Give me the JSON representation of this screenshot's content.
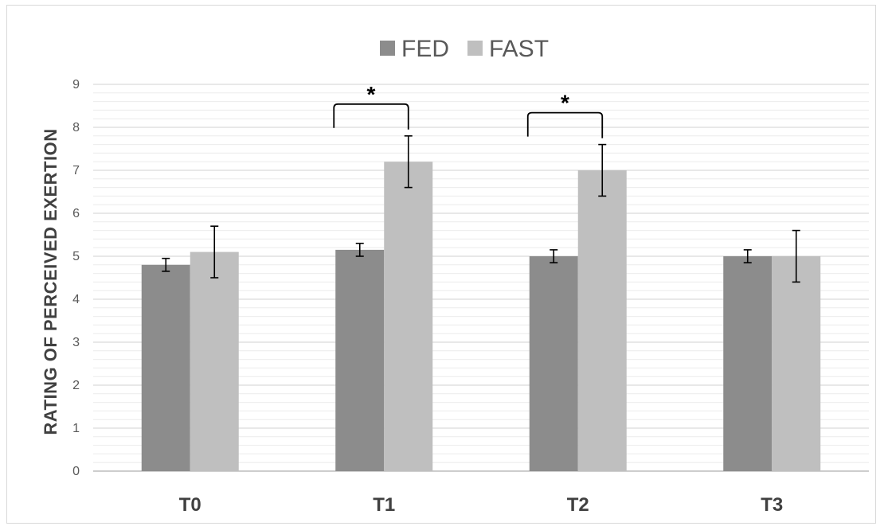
{
  "chart_data": {
    "type": "bar",
    "title": "",
    "xlabel": "",
    "ylabel": "RATING OF PERCEIVED EXERTION",
    "ylim": [
      0,
      9
    ],
    "y_major_ticks": [
      0,
      1,
      2,
      3,
      4,
      5,
      6,
      7,
      8,
      9
    ],
    "y_minor_step": 0.2,
    "grid": true,
    "legend_position": "top-center",
    "categories": [
      "T0",
      "T1",
      "T2",
      "T3"
    ],
    "series": [
      {
        "name": "FED",
        "color": "#8c8c8c",
        "values": [
          4.8,
          5.15,
          5.0,
          5.0
        ],
        "error": [
          0.15,
          0.15,
          0.15,
          0.15
        ]
      },
      {
        "name": "FAST",
        "color": "#bfbfbf",
        "values": [
          5.1,
          7.2,
          7.0,
          5.0
        ],
        "error": [
          0.6,
          0.6,
          0.6,
          0.6
        ]
      }
    ],
    "annotations": [
      {
        "category": "T1",
        "text": "*"
      },
      {
        "category": "T2",
        "text": "*"
      }
    ]
  }
}
